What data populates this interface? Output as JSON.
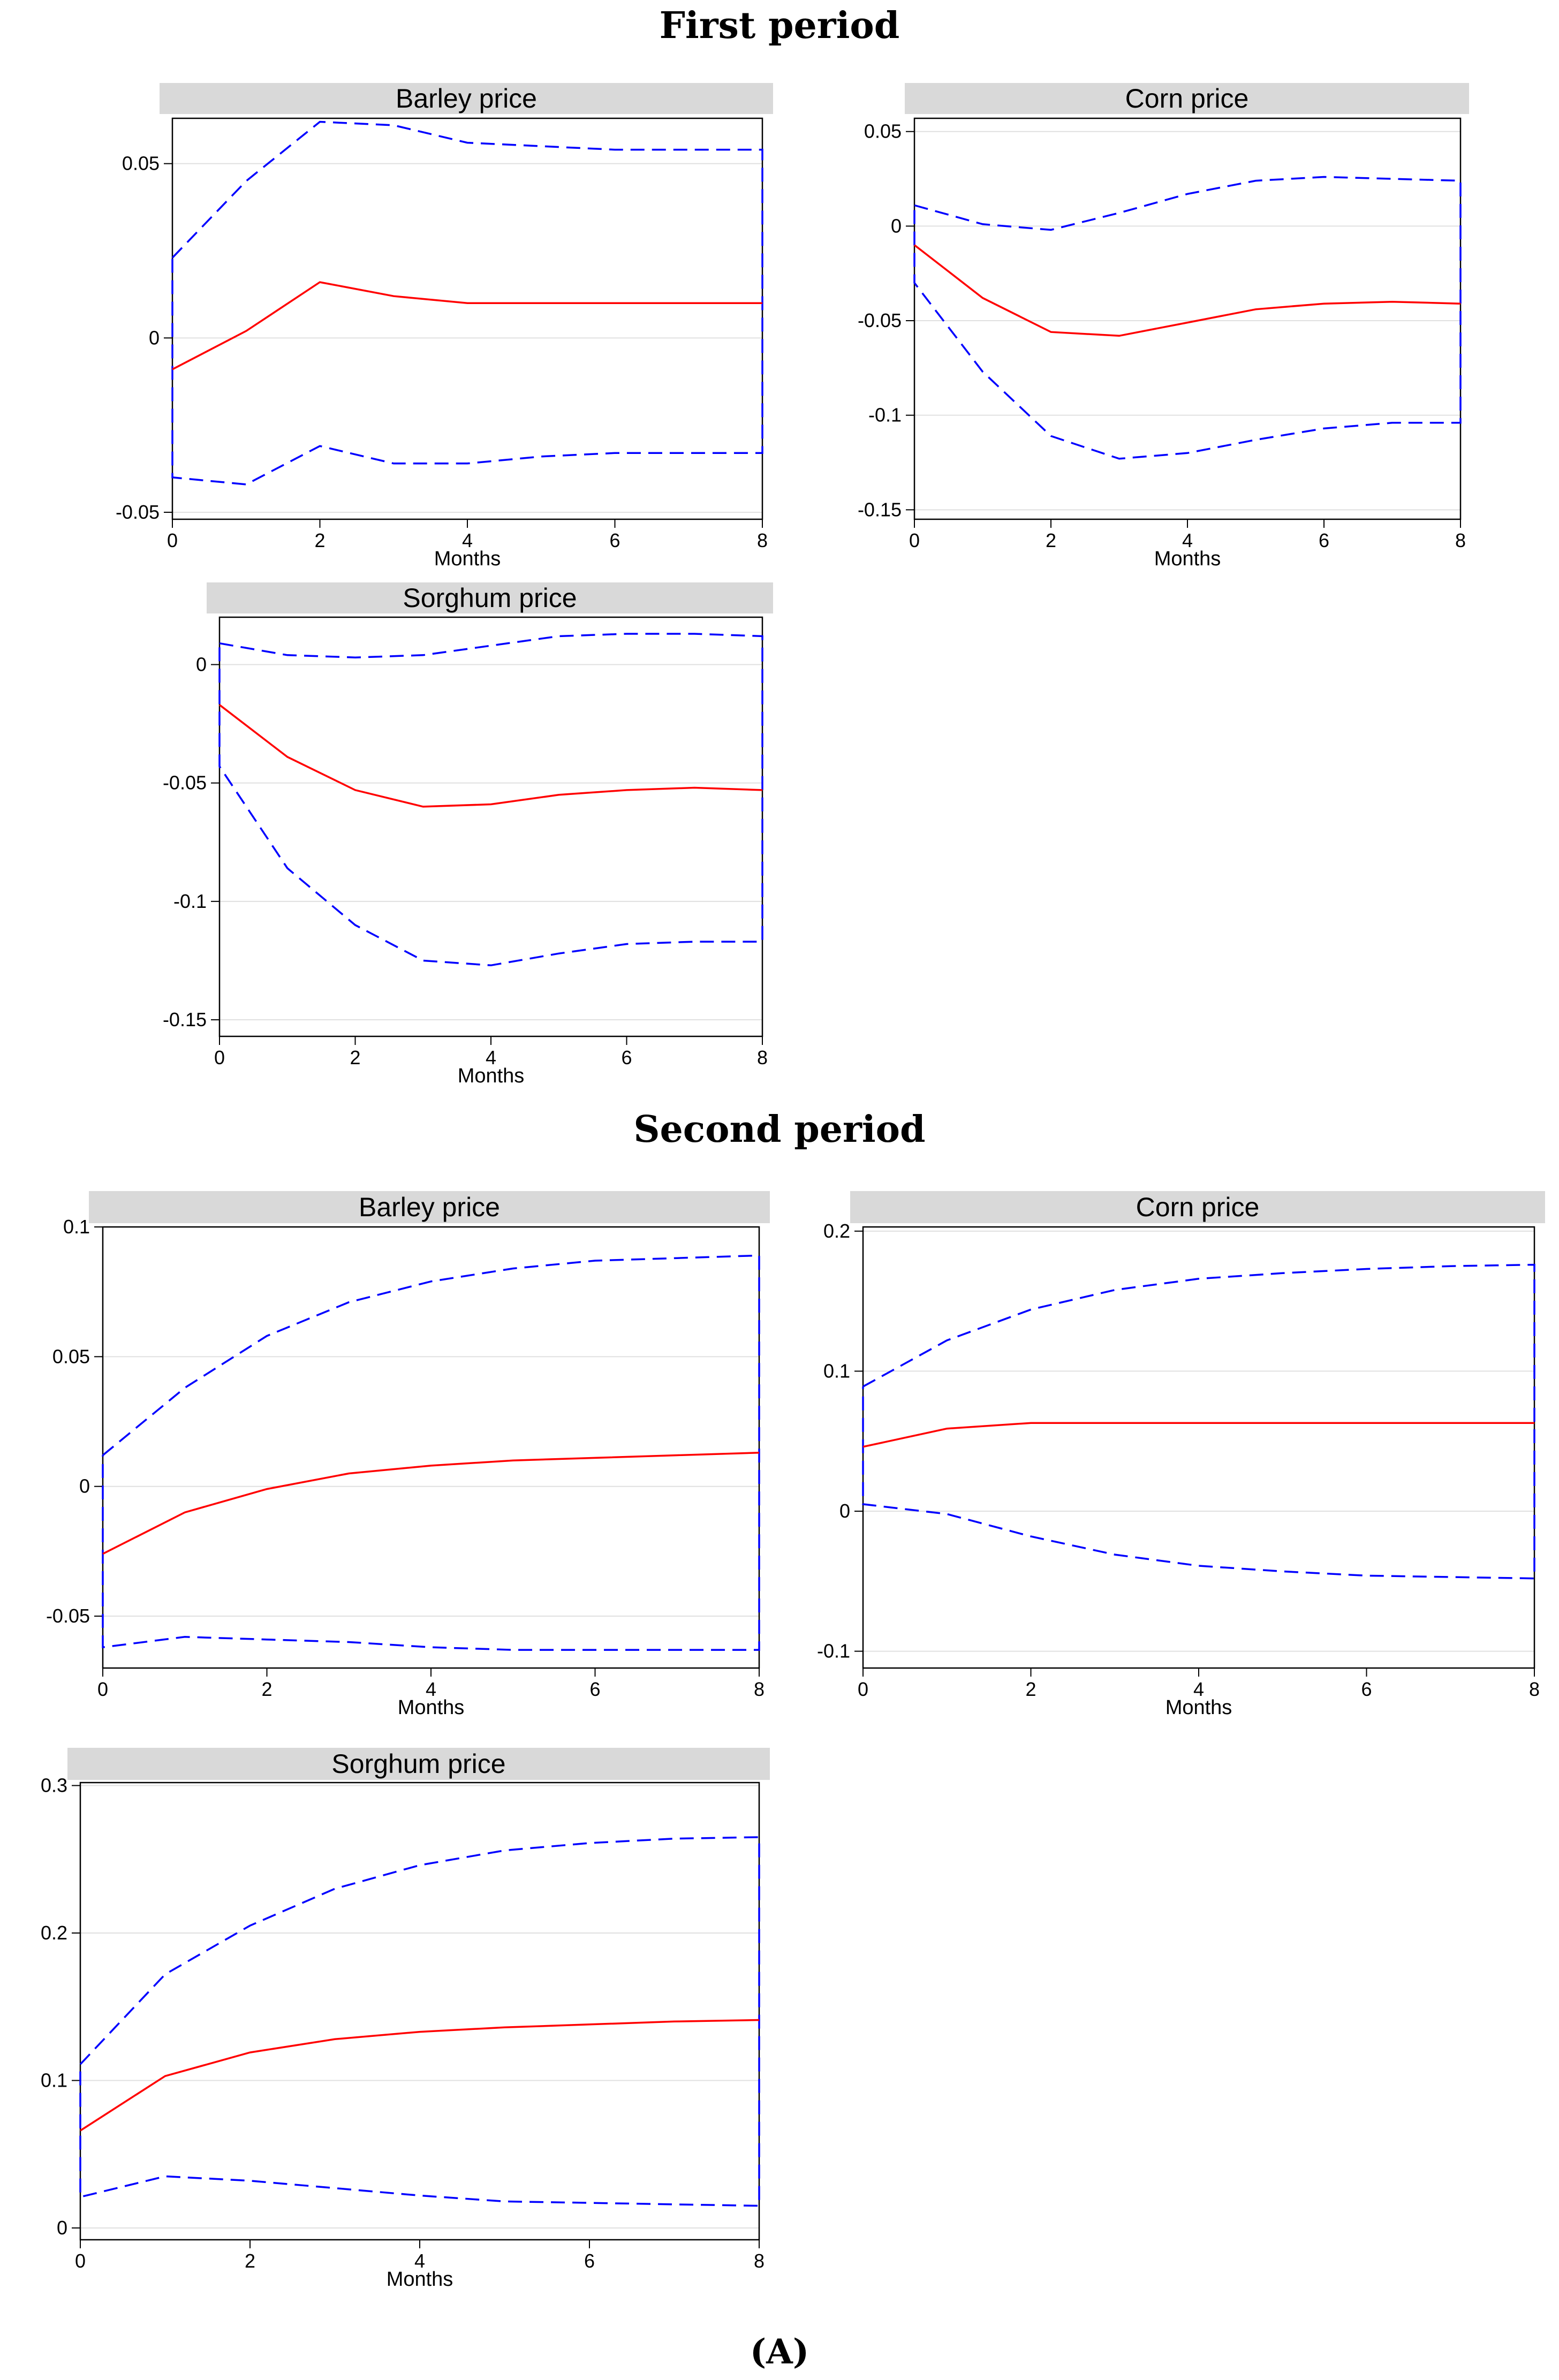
{
  "figure": {
    "first_period_title": "First period",
    "second_period_title": "Second period",
    "figure_label": "(A)"
  },
  "colors": {
    "estimate": "#ff0000",
    "bounds": "#0000ff",
    "title_band": "#d9d9d9",
    "grid": "#e0e0e0"
  },
  "chart_data": [
    {
      "type": "line",
      "period": "First period",
      "title": "Barley price",
      "xlabel": "Months",
      "ylabel": "",
      "x": [
        0,
        1,
        2,
        3,
        4,
        5,
        6,
        7,
        8
      ],
      "xticks": [
        0,
        2,
        4,
        6,
        8
      ],
      "xlim": [
        0,
        8
      ],
      "ylim": [
        -0.052,
        0.063
      ],
      "yticks": [
        -0.05,
        0,
        0.05
      ],
      "ytick_labels": [
        "-0.05",
        "0",
        "0.05"
      ],
      "series": [
        {
          "name": "irf",
          "values": [
            -0.009,
            0.002,
            0.016,
            0.012,
            0.01,
            0.01,
            0.01,
            0.01,
            0.01
          ]
        },
        {
          "name": "upper",
          "values": [
            0.023,
            0.045,
            0.062,
            0.061,
            0.056,
            0.055,
            0.054,
            0.054,
            0.054
          ]
        },
        {
          "name": "lower",
          "values": [
            -0.04,
            -0.042,
            -0.031,
            -0.036,
            -0.036,
            -0.034,
            -0.033,
            -0.033,
            -0.033
          ]
        }
      ]
    },
    {
      "type": "line",
      "period": "First period",
      "title": "Corn price",
      "xlabel": "Months",
      "ylabel": "",
      "x": [
        0,
        1,
        2,
        3,
        4,
        5,
        6,
        7,
        8
      ],
      "xticks": [
        0,
        2,
        4,
        6,
        8
      ],
      "xlim": [
        0,
        8
      ],
      "ylim": [
        -0.155,
        0.057
      ],
      "yticks": [
        -0.15,
        -0.1,
        -0.05,
        0,
        0.05
      ],
      "ytick_labels": [
        "-0.15",
        "-0.1",
        "-0.05",
        "0",
        "0.05"
      ],
      "series": [
        {
          "name": "irf",
          "values": [
            -0.01,
            -0.038,
            -0.056,
            -0.058,
            -0.051,
            -0.044,
            -0.041,
            -0.04,
            -0.041
          ]
        },
        {
          "name": "upper",
          "values": [
            0.011,
            0.001,
            -0.002,
            0.007,
            0.017,
            0.024,
            0.026,
            0.025,
            0.024
          ]
        },
        {
          "name": "lower",
          "values": [
            -0.03,
            -0.077,
            -0.111,
            -0.123,
            -0.12,
            -0.113,
            -0.107,
            -0.104,
            -0.104
          ]
        }
      ]
    },
    {
      "type": "line",
      "period": "First period",
      "title": "Sorghum price",
      "xlabel": "Months",
      "ylabel": "",
      "x": [
        0,
        1,
        2,
        3,
        4,
        5,
        6,
        7,
        8
      ],
      "xticks": [
        0,
        2,
        4,
        6,
        8
      ],
      "xlim": [
        0,
        8
      ],
      "ylim": [
        -0.157,
        0.02
      ],
      "yticks": [
        -0.15,
        -0.1,
        -0.05,
        0
      ],
      "ytick_labels": [
        "-0.15",
        "-0.1",
        "-0.05",
        "0"
      ],
      "series": [
        {
          "name": "irf",
          "values": [
            -0.017,
            -0.039,
            -0.053,
            -0.06,
            -0.059,
            -0.055,
            -0.053,
            -0.052,
            -0.053
          ]
        },
        {
          "name": "upper",
          "values": [
            0.009,
            0.004,
            0.003,
            0.004,
            0.008,
            0.012,
            0.013,
            0.013,
            0.012
          ]
        },
        {
          "name": "lower",
          "values": [
            -0.043,
            -0.086,
            -0.11,
            -0.125,
            -0.127,
            -0.122,
            -0.118,
            -0.117,
            -0.117
          ]
        }
      ]
    },
    {
      "type": "line",
      "period": "Second period",
      "title": "Barley price",
      "xlabel": "Months",
      "ylabel": "",
      "x": [
        0,
        1,
        2,
        3,
        4,
        5,
        6,
        7,
        8
      ],
      "xticks": [
        0,
        2,
        4,
        6,
        8
      ],
      "xlim": [
        0,
        8
      ],
      "ylim": [
        -0.07,
        0.1
      ],
      "yticks": [
        -0.05,
        0,
        0.05,
        0.1
      ],
      "ytick_labels": [
        "-0.05",
        "0",
        "0.05",
        "0.1"
      ],
      "series": [
        {
          "name": "irf",
          "values": [
            -0.026,
            -0.01,
            -0.001,
            0.005,
            0.008,
            0.01,
            0.011,
            0.012,
            0.013
          ]
        },
        {
          "name": "upper",
          "values": [
            0.012,
            0.038,
            0.058,
            0.071,
            0.079,
            0.084,
            0.087,
            0.088,
            0.089
          ]
        },
        {
          "name": "lower",
          "values": [
            -0.062,
            -0.058,
            -0.059,
            -0.06,
            -0.062,
            -0.063,
            -0.063,
            -0.063,
            -0.063
          ]
        }
      ]
    },
    {
      "type": "line",
      "period": "Second period",
      "title": "Corn price",
      "xlabel": "Months",
      "ylabel": "",
      "x": [
        0,
        1,
        2,
        3,
        4,
        5,
        6,
        7,
        8
      ],
      "xticks": [
        0,
        2,
        4,
        6,
        8
      ],
      "xlim": [
        0,
        8
      ],
      "ylim": [
        -0.112,
        0.203
      ],
      "yticks": [
        -0.1,
        0,
        0.1,
        0.2
      ],
      "ytick_labels": [
        "-0.1",
        "0",
        "0.1",
        "0.2"
      ],
      "series": [
        {
          "name": "irf",
          "values": [
            0.046,
            0.059,
            0.063,
            0.063,
            0.063,
            0.063,
            0.063,
            0.063,
            0.063
          ]
        },
        {
          "name": "upper",
          "values": [
            0.089,
            0.122,
            0.144,
            0.158,
            0.166,
            0.17,
            0.173,
            0.175,
            0.176
          ]
        },
        {
          "name": "lower",
          "values": [
            0.005,
            -0.002,
            -0.018,
            -0.031,
            -0.039,
            -0.043,
            -0.046,
            -0.047,
            -0.048
          ]
        }
      ]
    },
    {
      "type": "line",
      "period": "Second period",
      "title": "Sorghum price",
      "xlabel": "Months",
      "ylabel": "",
      "x": [
        0,
        1,
        2,
        3,
        4,
        5,
        6,
        7,
        8
      ],
      "xticks": [
        0,
        2,
        4,
        6,
        8
      ],
      "xlim": [
        0,
        8
      ],
      "ylim": [
        -0.008,
        0.302
      ],
      "yticks": [
        0,
        0.1,
        0.2,
        0.3
      ],
      "ytick_labels": [
        "0",
        "0.1",
        "0.2",
        "0.3"
      ],
      "series": [
        {
          "name": "irf",
          "values": [
            0.066,
            0.103,
            0.119,
            0.128,
            0.133,
            0.136,
            0.138,
            0.14,
            0.141
          ]
        },
        {
          "name": "upper",
          "values": [
            0.111,
            0.172,
            0.205,
            0.23,
            0.246,
            0.256,
            0.261,
            0.264,
            0.265
          ]
        },
        {
          "name": "lower",
          "values": [
            0.021,
            0.035,
            0.032,
            0.027,
            0.022,
            0.018,
            0.017,
            0.016,
            0.015
          ]
        }
      ]
    }
  ]
}
